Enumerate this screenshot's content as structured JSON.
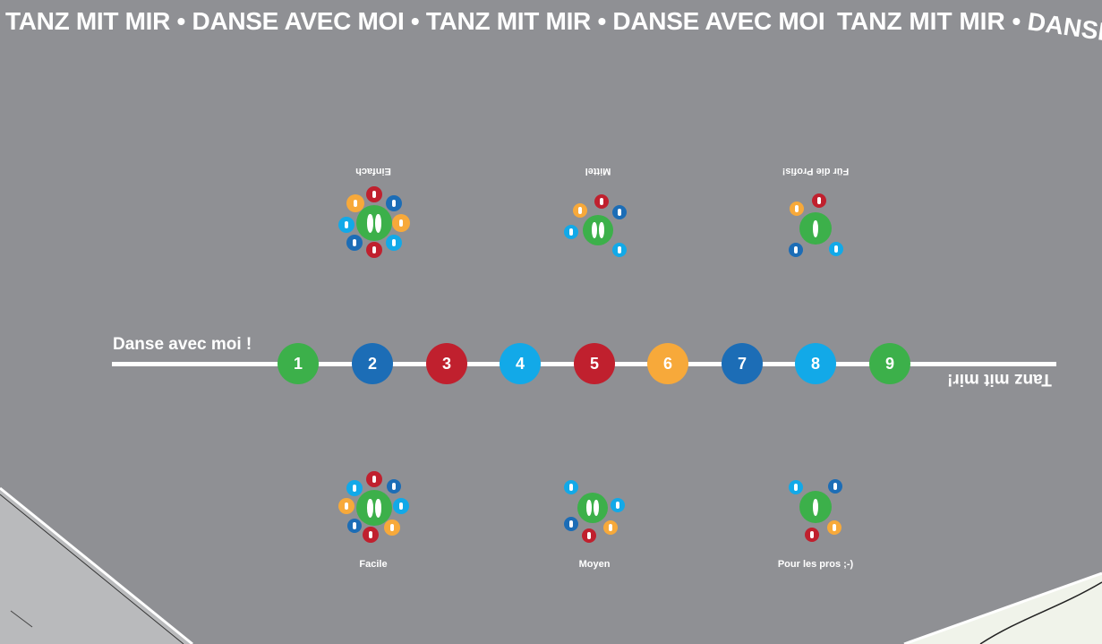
{
  "banner": {
    "main": "TANZ MIT MIR • DANSE AVEC MOI • TANZ MIT MIR • DANSE AVEC MOI",
    "right_a": "TANZ MIT MIR • ",
    "right_b": "DANSE A"
  },
  "line": {
    "left_label": "Danse avec moi !",
    "right_label": "Tanz mit mir!"
  },
  "steps": [
    "1",
    "2",
    "3",
    "4",
    "5",
    "6",
    "7",
    "8",
    "9"
  ],
  "step_colors": [
    "#3cb04a",
    "#1c6db6",
    "#c0202e",
    "#12a9e8",
    "#c0202e",
    "#f7a93a",
    "#1c6db6",
    "#12a9e8",
    "#3cb04a"
  ],
  "levels_top": [
    "Einfach",
    "Mittel",
    "Für die Profis!"
  ],
  "levels_bottom": [
    "Facile",
    "Moyen",
    "Pour les pros ;-)"
  ],
  "colors": {
    "ground": "#8f9094",
    "green": "#3cb04a",
    "blue": "#1c6db6",
    "light_blue": "#12a9e8",
    "red": "#c0202e",
    "orange": "#f7a93a"
  }
}
